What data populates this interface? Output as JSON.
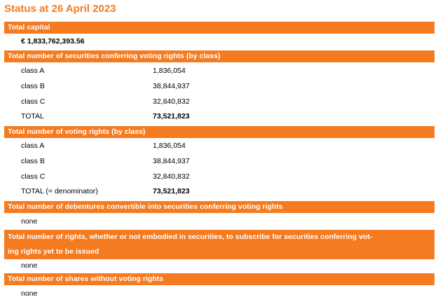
{
  "title": "Status at 26 April 2023",
  "sections": {
    "capital": {
      "header": "Total capital",
      "value": "€ 1,833,762,393.56"
    },
    "securities": {
      "header": "Total number of securities conferring voting rights (by class)",
      "rows": [
        {
          "label": "class A",
          "value": "1,836,054"
        },
        {
          "label": "class B",
          "value": "38,844,937"
        },
        {
          "label": "class C",
          "value": "32,840,832"
        },
        {
          "label": "TOTAL",
          "value": "73,521,823"
        }
      ]
    },
    "voting": {
      "header": "Total number of voting rights (by class)",
      "rows": [
        {
          "label": "class A",
          "value": "1,836,054"
        },
        {
          "label": "class B",
          "value": "38,844,937"
        },
        {
          "label": "class C",
          "value": "32,840,832"
        },
        {
          "label": "TOTAL (= denominator)",
          "value": "73,521,823"
        }
      ]
    },
    "debentures": {
      "header": "Total number of debentures convertible into securities conferring voting rights",
      "value": "none"
    },
    "rights": {
      "header_line1": "Total number of rights, whether or not embodied in securities, to subscribe for securities conferring vot-",
      "header_line2": "ing rights yet to be issued",
      "value": "none"
    },
    "shares": {
      "header": "Total number of shares without voting rights",
      "value": "none"
    }
  }
}
